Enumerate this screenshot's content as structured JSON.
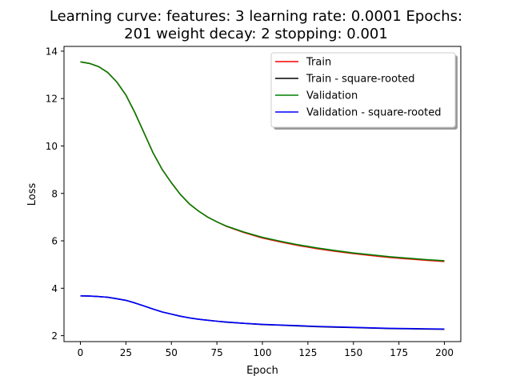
{
  "chart_data": {
    "type": "line",
    "title": "Learning curve: features: 3 learning rate: 0.0001 Epochs:",
    "subtitle": "201 weight decay: 2 stopping: 0.001",
    "xlabel": "Epoch",
    "ylabel": "Loss",
    "xlim": [
      -9,
      209
    ],
    "ylim": [
      1.75,
      14.2
    ],
    "xticks": [
      0,
      25,
      50,
      75,
      100,
      125,
      150,
      175,
      200
    ],
    "yticks": [
      2,
      4,
      6,
      8,
      10,
      12,
      14
    ],
    "grid": false,
    "legend_position": "top-right",
    "series": [
      {
        "name": "Train",
        "color": "#ff0000",
        "x": [
          0,
          5,
          10,
          15,
          20,
          25,
          30,
          35,
          40,
          45,
          50,
          55,
          60,
          65,
          70,
          75,
          80,
          90,
          100,
          110,
          120,
          130,
          140,
          150,
          160,
          170,
          180,
          190,
          200
        ],
        "y": [
          13.55,
          13.48,
          13.35,
          13.1,
          12.7,
          12.15,
          11.4,
          10.55,
          9.7,
          9.0,
          8.45,
          7.95,
          7.55,
          7.25,
          7.0,
          6.8,
          6.62,
          6.35,
          6.12,
          5.95,
          5.8,
          5.67,
          5.56,
          5.46,
          5.38,
          5.3,
          5.24,
          5.18,
          5.13
        ]
      },
      {
        "name": "Train - square-rooted",
        "color": "#000000",
        "x": [
          0,
          5,
          10,
          15,
          20,
          25,
          30,
          35,
          40,
          45,
          50,
          55,
          60,
          65,
          70,
          75,
          80,
          90,
          100,
          110,
          120,
          130,
          140,
          150,
          160,
          170,
          180,
          190,
          200
        ],
        "y": [
          3.68,
          3.67,
          3.65,
          3.62,
          3.56,
          3.49,
          3.38,
          3.25,
          3.12,
          3.0,
          2.91,
          2.82,
          2.75,
          2.69,
          2.65,
          2.61,
          2.57,
          2.52,
          2.47,
          2.44,
          2.41,
          2.38,
          2.36,
          2.34,
          2.32,
          2.3,
          2.29,
          2.28,
          2.27
        ]
      },
      {
        "name": "Validation",
        "color": "#008000",
        "x": [
          0,
          5,
          10,
          15,
          20,
          25,
          30,
          35,
          40,
          45,
          50,
          55,
          60,
          65,
          70,
          75,
          80,
          90,
          100,
          110,
          120,
          130,
          140,
          150,
          160,
          170,
          180,
          190,
          200
        ],
        "y": [
          13.55,
          13.48,
          13.35,
          13.1,
          12.7,
          12.15,
          11.4,
          10.55,
          9.7,
          9.0,
          8.45,
          7.95,
          7.55,
          7.25,
          7.0,
          6.8,
          6.63,
          6.37,
          6.15,
          5.98,
          5.83,
          5.7,
          5.59,
          5.49,
          5.41,
          5.33,
          5.27,
          5.21,
          5.16
        ]
      },
      {
        "name": "Validation - square-rooted",
        "color": "#0000ff",
        "x": [
          0,
          5,
          10,
          15,
          20,
          25,
          30,
          35,
          40,
          45,
          50,
          55,
          60,
          65,
          70,
          75,
          80,
          90,
          100,
          110,
          120,
          130,
          140,
          150,
          160,
          170,
          180,
          190,
          200
        ],
        "y": [
          3.68,
          3.67,
          3.65,
          3.62,
          3.56,
          3.49,
          3.38,
          3.25,
          3.12,
          3.0,
          2.91,
          2.82,
          2.75,
          2.69,
          2.65,
          2.61,
          2.58,
          2.52,
          2.48,
          2.45,
          2.42,
          2.39,
          2.37,
          2.35,
          2.33,
          2.31,
          2.3,
          2.29,
          2.28
        ]
      }
    ]
  }
}
